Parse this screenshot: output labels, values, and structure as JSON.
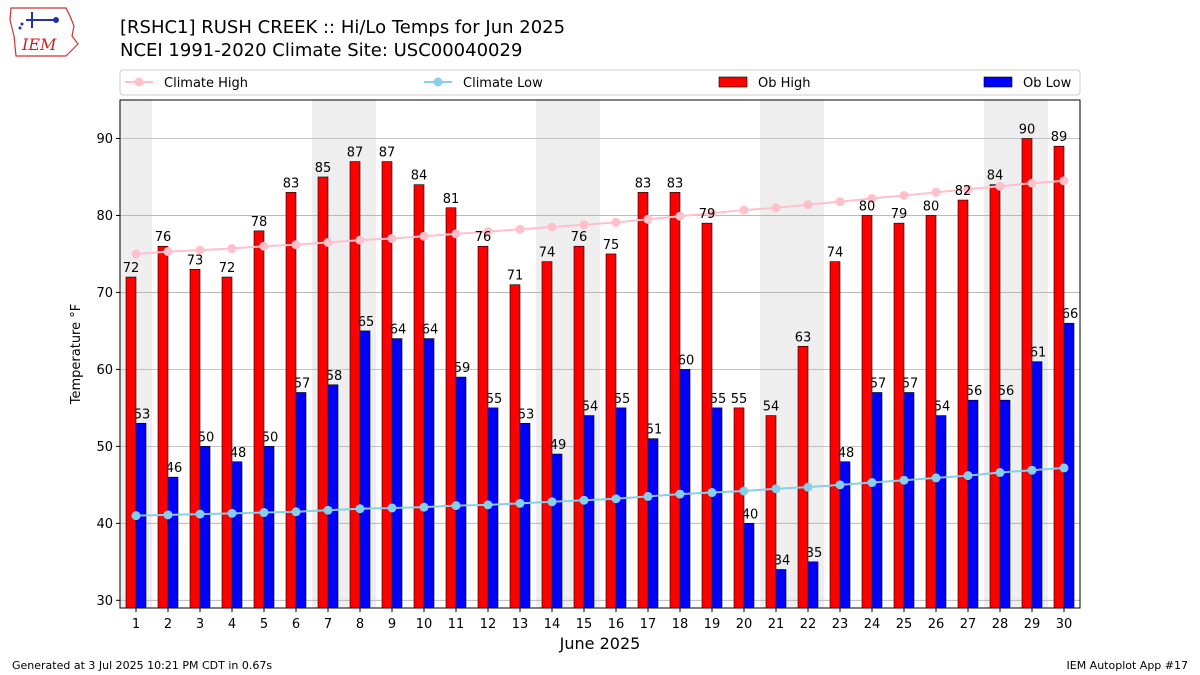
{
  "title_line1": "[RSHC1] RUSH CREEK :: Hi/Lo Temps for Jun 2025",
  "title_line2": "NCEI 1991-2020 Climate Site: USC00040029",
  "logo_text": "IEM",
  "footer_left": "Generated at 3 Jul 2025 10:21 PM CDT in 0.67s",
  "footer_right": "IEM Autoplot App #17",
  "colors": {
    "ob_high": "#ff0000",
    "ob_low": "#0000ff",
    "climate_high": "#ffc0cb",
    "climate_low": "#87ceeb",
    "weekend_shade": "#eeeeee",
    "grid": "#b0b0b0"
  },
  "chart_data": {
    "type": "bar",
    "xlabel": "June 2025",
    "ylabel": "Temperature °F",
    "ylim": [
      29,
      95
    ],
    "yticks": [
      30,
      40,
      50,
      60,
      70,
      80,
      90
    ],
    "grid": true,
    "legend_position": "top",
    "categories": [
      "1",
      "2",
      "3",
      "4",
      "5",
      "6",
      "7",
      "8",
      "9",
      "10",
      "11",
      "12",
      "13",
      "14",
      "15",
      "16",
      "17",
      "18",
      "19",
      "20",
      "21",
      "22",
      "23",
      "24",
      "25",
      "26",
      "27",
      "28",
      "29",
      "30"
    ],
    "shaded_days": [
      1,
      7,
      8,
      14,
      15,
      21,
      22,
      28,
      29
    ],
    "series": [
      {
        "name": "Climate High",
        "kind": "line",
        "values": [
          75.0,
          75.3,
          75.5,
          75.7,
          76.0,
          76.2,
          76.5,
          76.8,
          77.0,
          77.3,
          77.6,
          77.9,
          78.2,
          78.5,
          78.8,
          79.1,
          79.5,
          79.9,
          80.3,
          80.7,
          81.0,
          81.4,
          81.8,
          82.2,
          82.6,
          83.0,
          83.4,
          83.8,
          84.2,
          84.5
        ]
      },
      {
        "name": "Climate Low",
        "kind": "line",
        "values": [
          41.0,
          41.1,
          41.2,
          41.3,
          41.4,
          41.5,
          41.7,
          41.9,
          42.0,
          42.1,
          42.3,
          42.4,
          42.6,
          42.8,
          43.0,
          43.2,
          43.5,
          43.8,
          44.0,
          44.2,
          44.5,
          44.7,
          45.0,
          45.3,
          45.6,
          45.9,
          46.2,
          46.6,
          46.9,
          47.2
        ]
      },
      {
        "name": "Ob High",
        "kind": "bar",
        "values": [
          72,
          76,
          73,
          72,
          78,
          83,
          85,
          87,
          87,
          84,
          81,
          76,
          71,
          74,
          76,
          75,
          83,
          83,
          79,
          55,
          54,
          63,
          74,
          80,
          79,
          80,
          82,
          84,
          90,
          89
        ]
      },
      {
        "name": "Ob Low",
        "kind": "bar",
        "values": [
          53,
          46,
          50,
          48,
          50,
          57,
          58,
          65,
          64,
          64,
          59,
          55,
          53,
          49,
          54,
          55,
          51,
          60,
          55,
          40,
          34,
          35,
          48,
          57,
          57,
          54,
          56,
          56,
          61,
          66
        ]
      }
    ]
  }
}
